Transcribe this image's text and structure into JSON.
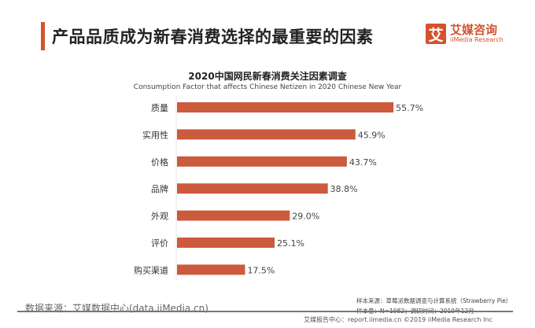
{
  "header": {
    "title": "产品品质成为新春消费选择的最重要的因素"
  },
  "logo": {
    "mark": "艾",
    "name_cn": "艾媒咨询",
    "name_en": "iiMedia Research"
  },
  "chart_data": {
    "type": "bar",
    "orientation": "horizontal",
    "title": "2020中国网民新春消费关注因素调查",
    "subtitle": "Consumption Factor that affects Chinese Netizen in 2020 Chinese New Year",
    "categories": [
      "质量",
      "实用性",
      "价格",
      "品牌",
      "外观",
      "评价",
      "购买渠道"
    ],
    "values": [
      55.7,
      45.9,
      43.7,
      38.8,
      29.0,
      25.1,
      17.5
    ],
    "labels": [
      "55.7%",
      "45.9%",
      "43.7%",
      "38.8%",
      "29.0%",
      "25.1%",
      "17.5%"
    ],
    "unit": "%",
    "color": "#cc5a3c",
    "grid": false
  },
  "footer": {
    "source": "数据来源：艾媒数据中心(data.iiMedia.cn)",
    "sample_source": "样本来源：草莓派数据调查与计算系统（Strawberry Pie）",
    "sample_size": "样本量：N=1982；调研时间：2019年12月",
    "copyright": "艾媒报告中心：report.iimedia.cn ©2019 iiMedia Research Inc"
  }
}
